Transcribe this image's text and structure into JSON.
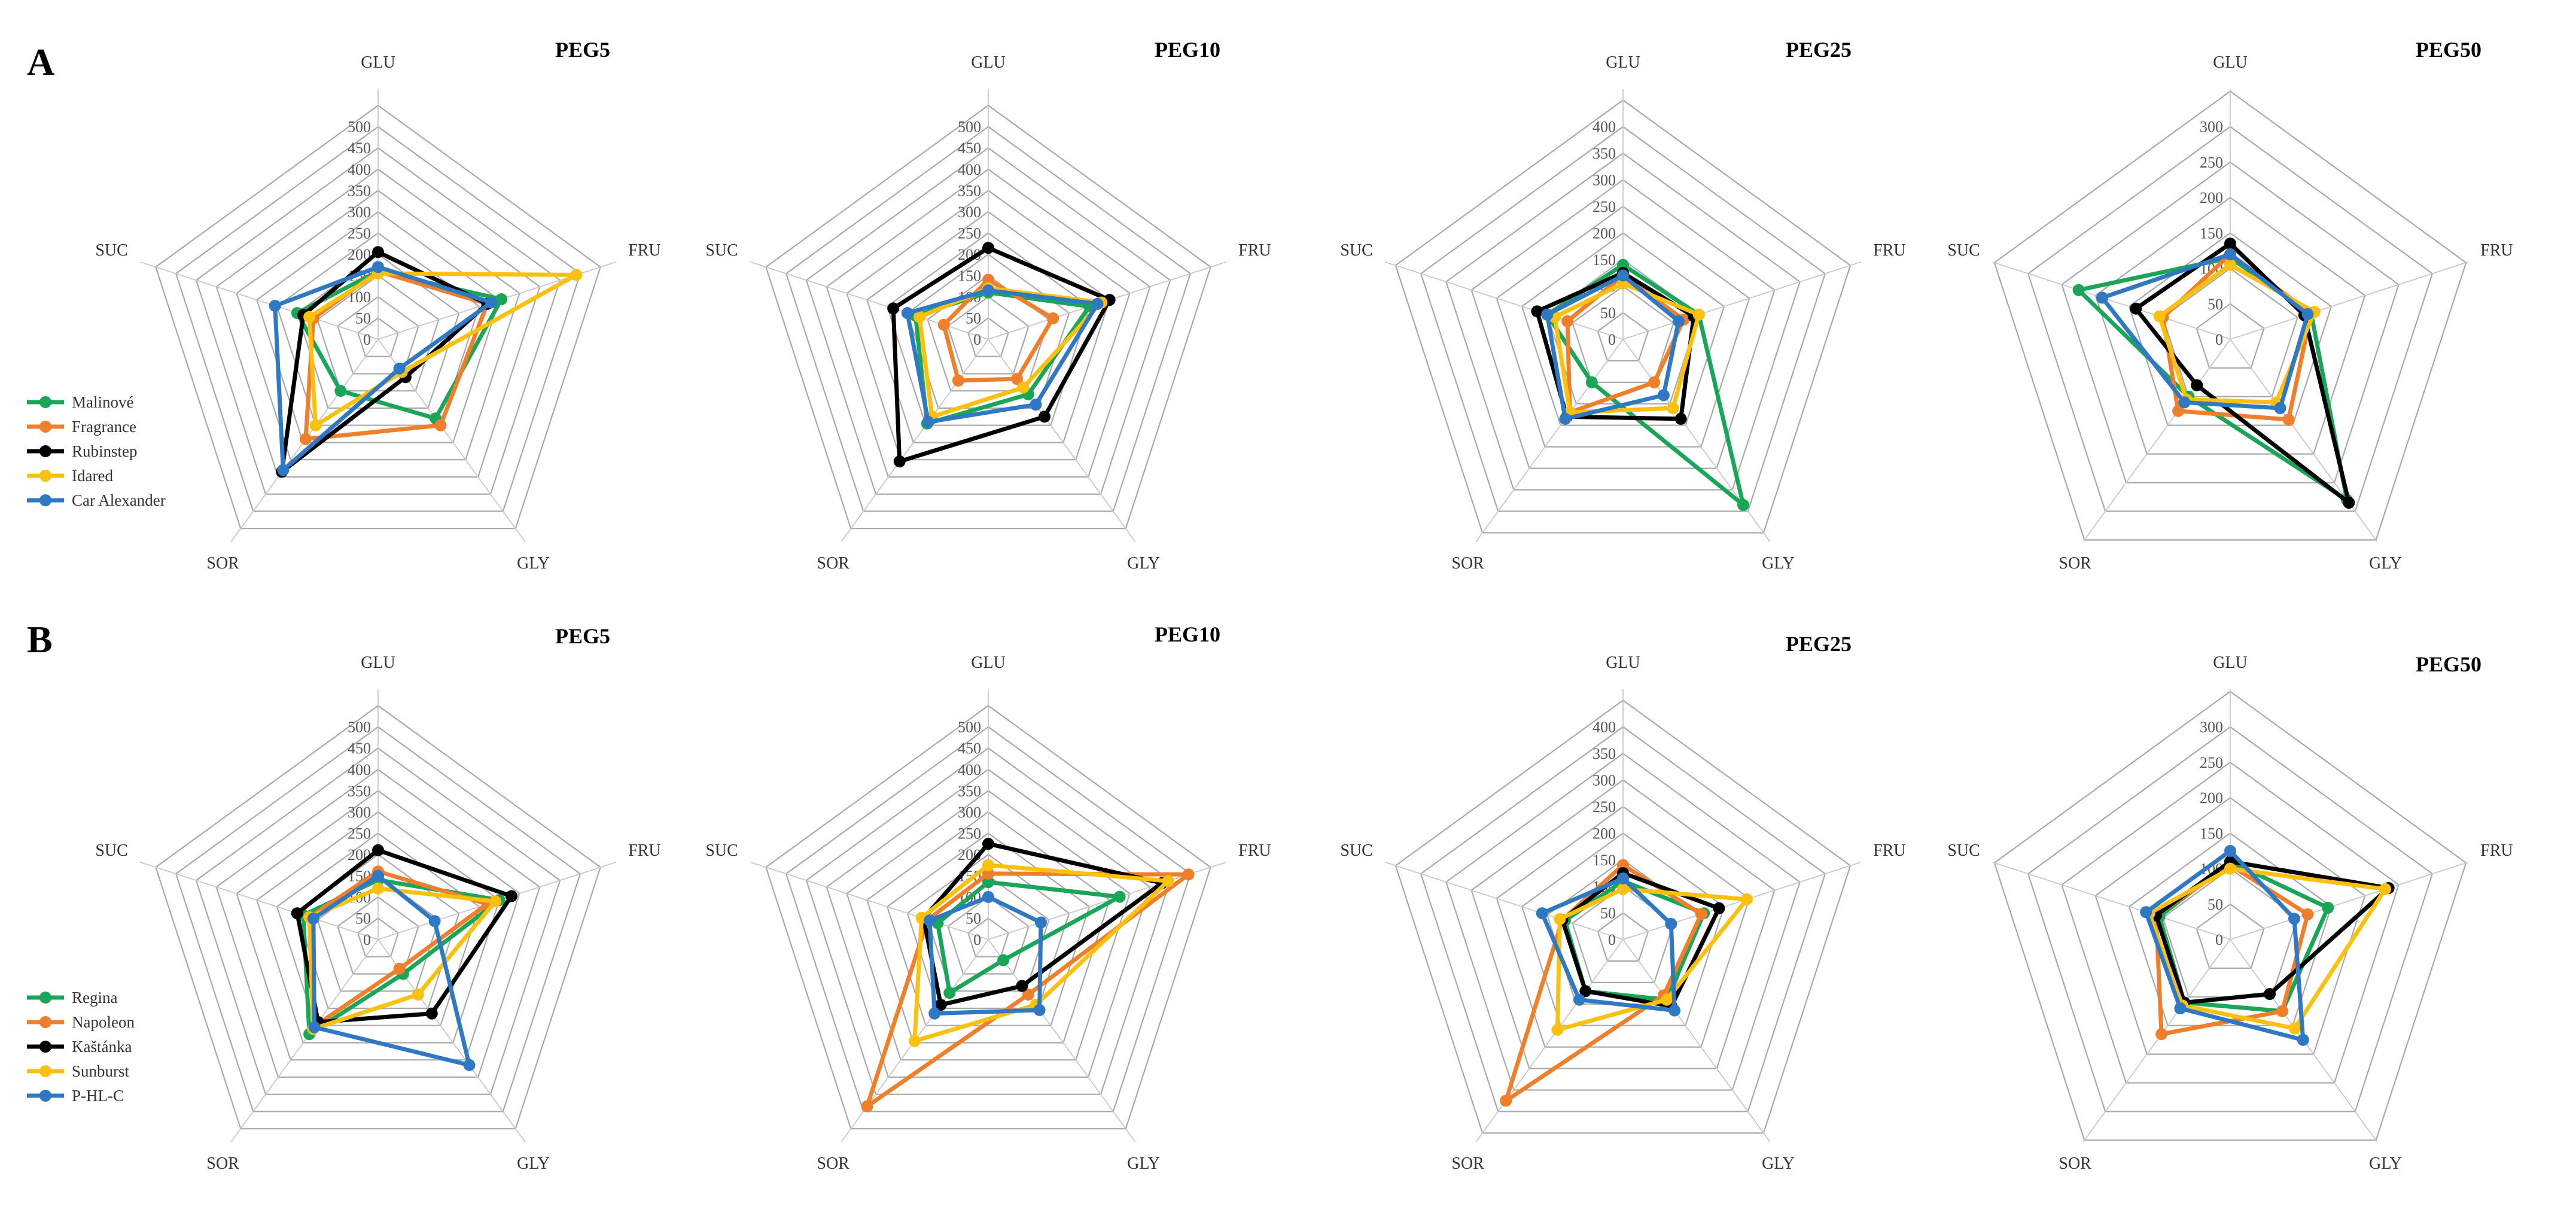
{
  "figure": {
    "panels": [
      {
        "letter": "A",
        "legend": [
          "Malinové",
          "Fragrance",
          "Rubinstep",
          "Idared",
          "Car Alexander"
        ]
      },
      {
        "letter": "B",
        "legend": [
          "Regina",
          "Napoleon",
          "Kaštánka",
          "Sunburst",
          "P-HL-C"
        ]
      }
    ]
  },
  "colors": {
    "green": "#1aa659",
    "orange": "#f07f2c",
    "black": "#000000",
    "yellow": "#fcc10f",
    "blue": "#2f78c4"
  },
  "chart_data": [
    {
      "type": "radar",
      "panel": "A",
      "title": "PEG5",
      "axes": [
        "GLU",
        "FRU",
        "GLY",
        "SOR",
        "SUC"
      ],
      "ticks": [
        0,
        50,
        100,
        150,
        200,
        250,
        300,
        350,
        400,
        450,
        500
      ],
      "rmax": 500,
      "series": [
        {
          "name": "Malinové",
          "color": "#1aa659",
          "values": [
            160,
            305,
            230,
            150,
            200
          ]
        },
        {
          "name": "Fragrance",
          "color": "#f07f2c",
          "values": [
            160,
            270,
            250,
            290,
            160
          ]
        },
        {
          "name": "Rubinstep",
          "color": "#000000",
          "values": [
            205,
            270,
            110,
            385,
            185
          ]
        },
        {
          "name": "Idared",
          "color": "#fcc10f",
          "values": [
            155,
            490,
            95,
            250,
            170
          ]
        },
        {
          "name": "Car Alexander",
          "color": "#2f78c4",
          "values": [
            170,
            280,
            85,
            380,
            255
          ]
        }
      ]
    },
    {
      "type": "radar",
      "panel": "A",
      "title": "PEG10",
      "axes": [
        "GLU",
        "FRU",
        "GLY",
        "SOR",
        "SUC"
      ],
      "ticks": [
        0,
        50,
        100,
        150,
        200,
        250,
        300,
        350,
        400,
        450,
        500
      ],
      "rmax": 500,
      "series": [
        {
          "name": "Malinové",
          "color": "#1aa659",
          "values": [
            110,
            250,
            160,
            245,
            180
          ]
        },
        {
          "name": "Fragrance",
          "color": "#f07f2c",
          "values": [
            140,
            160,
            115,
            120,
            110
          ]
        },
        {
          "name": "Rubinstep",
          "color": "#000000",
          "values": [
            215,
            300,
            225,
            355,
            235
          ]
        },
        {
          "name": "Idared",
          "color": "#fcc10f",
          "values": [
            120,
            280,
            140,
            225,
            170
          ]
        },
        {
          "name": "Car Alexander",
          "color": "#2f78c4",
          "values": [
            115,
            270,
            190,
            240,
            200
          ]
        }
      ]
    },
    {
      "type": "radar",
      "panel": "A",
      "title": "PEG25",
      "axes": [
        "GLU",
        "FRU",
        "GLY",
        "SOR",
        "SUC"
      ],
      "ticks": [
        0,
        50,
        100,
        150,
        200,
        250,
        300,
        350,
        400
      ],
      "rmax": 400,
      "series": [
        {
          "name": "Malinové",
          "color": "#1aa659",
          "values": [
            140,
            150,
            385,
            100,
            150
          ]
        },
        {
          "name": "Fragrance",
          "color": "#f07f2c",
          "values": [
            120,
            120,
            100,
            170,
            110
          ]
        },
        {
          "name": "Rubinstep",
          "color": "#000000",
          "values": [
            125,
            140,
            185,
            180,
            170
          ]
        },
        {
          "name": "Idared",
          "color": "#fcc10f",
          "values": [
            105,
            150,
            160,
            170,
            135
          ]
        },
        {
          "name": "Car Alexander",
          "color": "#2f78c4",
          "values": [
            120,
            110,
            130,
            185,
            150
          ]
        }
      ]
    },
    {
      "type": "radar",
      "panel": "A",
      "title": "PEG50",
      "axes": [
        "GLU",
        "FRU",
        "GLY",
        "SOR",
        "SUC"
      ],
      "ticks": [
        0,
        50,
        100,
        150,
        200,
        250,
        300
      ],
      "rmax": 300,
      "series": [
        {
          "name": "Malinové",
          "color": "#1aa659",
          "values": [
            115,
            120,
            280,
            100,
            225
          ]
        },
        {
          "name": "Fragrance",
          "color": "#f07f2c",
          "values": [
            120,
            120,
            140,
            125,
            100
          ]
        },
        {
          "name": "Rubinstep",
          "color": "#000000",
          "values": [
            135,
            110,
            285,
            80,
            140
          ]
        },
        {
          "name": "Idared",
          "color": "#fcc10f",
          "values": [
            105,
            125,
            110,
            105,
            105
          ]
        },
        {
          "name": "Car Alexander",
          "color": "#2f78c4",
          "values": [
            120,
            115,
            120,
            110,
            190
          ]
        }
      ]
    },
    {
      "type": "radar",
      "panel": "B",
      "title": "PEG5",
      "axes": [
        "GLU",
        "FRU",
        "GLY",
        "SOR",
        "SUC"
      ],
      "ticks": [
        0,
        50,
        100,
        150,
        200,
        250,
        300,
        350,
        400,
        450,
        500
      ],
      "rmax": 500,
      "series": [
        {
          "name": "Regina",
          "color": "#1aa659",
          "values": [
            140,
            300,
            100,
            275,
            185
          ]
        },
        {
          "name": "Napoleon",
          "color": "#f07f2c",
          "values": [
            160,
            270,
            85,
            250,
            170
          ]
        },
        {
          "name": "Kaštánka",
          "color": "#000000",
          "values": [
            210,
            330,
            215,
            240,
            200
          ]
        },
        {
          "name": "Sunburst",
          "color": "#fcc10f",
          "values": [
            120,
            290,
            160,
            260,
            170
          ]
        },
        {
          "name": "P-HL-C",
          "color": "#2f78c4",
          "values": [
            150,
            140,
            365,
            255,
            160
          ]
        }
      ]
    },
    {
      "type": "radar",
      "panel": "B",
      "title": "PEG10",
      "axes": [
        "GLU",
        "FRU",
        "GLY",
        "SOR",
        "SUC"
      ],
      "ticks": [
        0,
        50,
        100,
        150,
        200,
        250,
        300,
        350,
        400,
        450,
        500
      ],
      "rmax": 500,
      "series": [
        {
          "name": "Regina",
          "color": "#1aa659",
          "values": [
            135,
            325,
            60,
            155,
            125
          ]
        },
        {
          "name": "Napoleon",
          "color": "#f07f2c",
          "values": [
            155,
            495,
            160,
            485,
            150
          ]
        },
        {
          "name": "Kaštánka",
          "color": "#000000",
          "values": [
            225,
            430,
            135,
            190,
            160
          ]
        },
        {
          "name": "Sunburst",
          "color": "#fcc10f",
          "values": [
            175,
            445,
            190,
            295,
            165
          ]
        },
        {
          "name": "P-HL-C",
          "color": "#2f78c4",
          "values": [
            100,
            130,
            205,
            215,
            145
          ]
        }
      ]
    },
    {
      "type": "radar",
      "panel": "B",
      "title": "PEG25",
      "axes": [
        "GLU",
        "FRU",
        "GLY",
        "SOR",
        "SUC"
      ],
      "ticks": [
        0,
        50,
        100,
        150,
        200,
        250,
        300,
        350,
        400
      ],
      "rmax": 400,
      "series": [
        {
          "name": "Regina",
          "color": "#1aa659",
          "values": [
            110,
            160,
            140,
            120,
            115
          ]
        },
        {
          "name": "Napoleon",
          "color": "#f07f2c",
          "values": [
            140,
            155,
            130,
            375,
            120
          ]
        },
        {
          "name": "Kaštánka",
          "color": "#000000",
          "values": [
            125,
            190,
            155,
            120,
            120
          ]
        },
        {
          "name": "Sunburst",
          "color": "#fcc10f",
          "values": [
            95,
            245,
            140,
            210,
            125
          ]
        },
        {
          "name": "P-HL-C",
          "color": "#2f78c4",
          "values": [
            115,
            95,
            165,
            140,
            160
          ]
        }
      ]
    },
    {
      "type": "radar",
      "panel": "B",
      "title": "PEG50",
      "axes": [
        "GLU",
        "FRU",
        "GLY",
        "SOR",
        "SUC"
      ],
      "ticks": [
        0,
        50,
        100,
        150,
        200,
        250,
        300
      ],
      "rmax": 300,
      "series": [
        {
          "name": "Regina",
          "color": "#1aa659",
          "values": [
            110,
            145,
            125,
            110,
            105
          ]
        },
        {
          "name": "Napoleon",
          "color": "#f07f2c",
          "values": [
            105,
            115,
            125,
            165,
            110
          ]
        },
        {
          "name": "Kaštánka",
          "color": "#000000",
          "values": [
            110,
            235,
            95,
            110,
            110
          ]
        },
        {
          "name": "Sunburst",
          "color": "#fcc10f",
          "values": [
            100,
            230,
            155,
            115,
            120
          ]
        },
        {
          "name": "P-HL-C",
          "color": "#2f78c4",
          "values": [
            125,
            95,
            175,
            120,
            125
          ]
        }
      ]
    }
  ]
}
